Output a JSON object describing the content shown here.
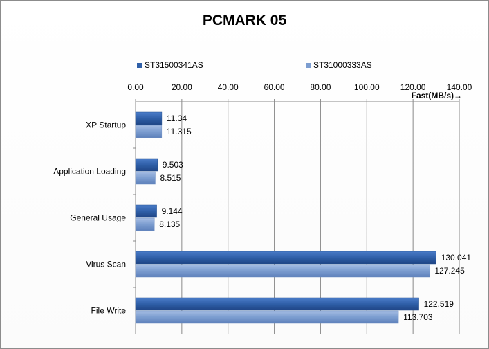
{
  "chart_data": {
    "type": "bar",
    "orientation": "horizontal",
    "title": "PCMARK 05",
    "xlabel": "Fast(MB/s)→",
    "ylabel": "",
    "xlim": [
      0,
      140
    ],
    "tick_labels": [
      "0.00",
      "20.00",
      "40.00",
      "60.00",
      "80.00",
      "100.00",
      "120.00",
      "140.00"
    ],
    "ticks": [
      0,
      20,
      40,
      60,
      80,
      100,
      120,
      140
    ],
    "categories": [
      "XP Startup",
      "Application Loading",
      "General Usage",
      "Virus Scan",
      "File Write"
    ],
    "series": [
      {
        "name": "ST31500341AS",
        "values": [
          11.34,
          9.503,
          9.144,
          130.041,
          122.519
        ],
        "labels": [
          "11.34",
          "9.503",
          "9.144",
          "130.041",
          "122.519"
        ],
        "color": "#2f5fa8"
      },
      {
        "name": "ST31000333AS",
        "values": [
          11.315,
          8.515,
          8.135,
          127.245,
          113.703
        ],
        "labels": [
          "11.315",
          "8.515",
          "8.135",
          "127.245",
          "113.703"
        ],
        "color": "#7c9dd0"
      }
    ],
    "grid": true,
    "legend_position": "top"
  }
}
